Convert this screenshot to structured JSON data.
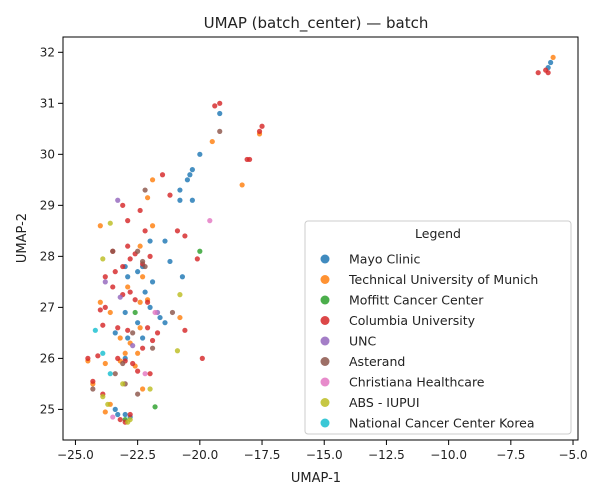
{
  "chart_data": {
    "type": "scatter",
    "title": "UMAP (batch_center) — batch",
    "xlabel": "UMAP-1",
    "ylabel": "UMAP-2",
    "xlim": [
      -25.5,
      -4.8
    ],
    "ylim": [
      24.4,
      32.3
    ],
    "xticks": [
      -25.0,
      -22.5,
      -20.0,
      -17.5,
      -15.0,
      -12.5,
      -10.0,
      -7.5,
      -5.0
    ],
    "xtick_labels": [
      "−25.0",
      "−22.5",
      "−20.0",
      "−17.5",
      "−15.0",
      "−12.5",
      "−10.0",
      "−7.5",
      "−5.0"
    ],
    "yticks": [
      25,
      26,
      27,
      28,
      29,
      30,
      31,
      32
    ],
    "ytick_labels": [
      "25",
      "26",
      "27",
      "28",
      "29",
      "30",
      "31",
      "32"
    ],
    "grid": false,
    "legend": {
      "title": "Legend",
      "placement": "lower-right"
    },
    "series": [
      {
        "name": "Mayo Clinic",
        "color": "#1f77b4",
        "points": [
          [
            -5.9,
            31.8
          ],
          [
            -6.0,
            31.7
          ],
          [
            -19.2,
            30.8
          ],
          [
            -20.0,
            30.0
          ],
          [
            -20.3,
            29.7
          ],
          [
            -20.4,
            29.6
          ],
          [
            -20.5,
            29.5
          ],
          [
            -20.8,
            29.3
          ],
          [
            -20.3,
            29.1
          ],
          [
            -20.8,
            29.1
          ],
          [
            -21.4,
            28.3
          ],
          [
            -22.0,
            28.3
          ],
          [
            -21.2,
            27.9
          ],
          [
            -22.3,
            27.8
          ],
          [
            -22.9,
            27.6
          ],
          [
            -23.0,
            27.8
          ],
          [
            -22.5,
            27.7
          ],
          [
            -21.9,
            27.5
          ],
          [
            -20.7,
            27.6
          ],
          [
            -22.2,
            27.3
          ],
          [
            -22.0,
            27.0
          ],
          [
            -21.6,
            26.8
          ],
          [
            -21.4,
            26.7
          ],
          [
            -23.0,
            26.9
          ],
          [
            -22.5,
            26.7
          ],
          [
            -23.4,
            26.5
          ],
          [
            -22.9,
            26.4
          ],
          [
            -22.3,
            26.4
          ],
          [
            -23.0,
            26.0
          ],
          [
            -23.4,
            25.0
          ],
          [
            -23.0,
            24.9
          ],
          [
            -22.8,
            24.85
          ],
          [
            -23.3,
            24.9
          ]
        ]
      },
      {
        "name": "Technical University of Munich",
        "color": "#ff7f0e",
        "points": [
          [
            -5.8,
            31.9
          ],
          [
            -19.5,
            30.25
          ],
          [
            -17.6,
            30.4
          ],
          [
            -18.3,
            29.4
          ],
          [
            -21.9,
            29.5
          ],
          [
            -22.1,
            29.15
          ],
          [
            -24.0,
            28.6
          ],
          [
            -21.9,
            28.6
          ],
          [
            -22.4,
            28.2
          ],
          [
            -22.3,
            27.6
          ],
          [
            -24.0,
            27.1
          ],
          [
            -22.1,
            27.15
          ],
          [
            -22.9,
            27.4
          ],
          [
            -22.4,
            27.1
          ],
          [
            -23.6,
            26.9
          ],
          [
            -22.4,
            26.6
          ],
          [
            -23.2,
            26.4
          ],
          [
            -22.8,
            26.3
          ],
          [
            -23.0,
            26.1
          ],
          [
            -22.5,
            26.1
          ],
          [
            -22.6,
            25.85
          ],
          [
            -23.2,
            25.95
          ],
          [
            -23.8,
            25.9
          ],
          [
            -24.5,
            25.95
          ],
          [
            -24.3,
            25.5
          ],
          [
            -23.8,
            24.95
          ],
          [
            -23.6,
            25.1
          ],
          [
            -22.3,
            25.4
          ],
          [
            -20.8,
            26.8
          ]
        ]
      },
      {
        "name": "Moffitt Cancer Center",
        "color": "#2ca02c",
        "points": [
          [
            -20.0,
            28.1
          ],
          [
            -21.8,
            25.05
          ],
          [
            -22.6,
            26.9
          ],
          [
            -23.0,
            24.8
          ]
        ]
      },
      {
        "name": "Columbia University",
        "color": "#d62728",
        "points": [
          [
            -6.4,
            31.6
          ],
          [
            -6.0,
            31.6
          ],
          [
            -6.1,
            31.65
          ],
          [
            -19.2,
            31.0
          ],
          [
            -19.4,
            30.95
          ],
          [
            -17.5,
            30.55
          ],
          [
            -17.6,
            30.45
          ],
          [
            -18.0,
            29.9
          ],
          [
            -18.1,
            29.9
          ],
          [
            -21.5,
            29.6
          ],
          [
            -21.2,
            29.2
          ],
          [
            -23.1,
            29.0
          ],
          [
            -22.9,
            28.7
          ],
          [
            -22.4,
            28.9
          ],
          [
            -22.2,
            28.5
          ],
          [
            -20.9,
            28.5
          ],
          [
            -20.6,
            28.4
          ],
          [
            -20.1,
            27.95
          ],
          [
            -22.9,
            28.2
          ],
          [
            -23.5,
            28.1
          ],
          [
            -22.6,
            28.05
          ],
          [
            -22.8,
            27.95
          ],
          [
            -22.3,
            27.85
          ],
          [
            -22.0,
            28.0
          ],
          [
            -23.1,
            27.8
          ],
          [
            -23.4,
            27.7
          ],
          [
            -23.8,
            27.6
          ],
          [
            -23.5,
            27.4
          ],
          [
            -23.1,
            27.25
          ],
          [
            -22.8,
            27.3
          ],
          [
            -22.6,
            27.15
          ],
          [
            -22.1,
            27.1
          ],
          [
            -23.8,
            27.0
          ],
          [
            -24.0,
            26.95
          ],
          [
            -23.9,
            26.65
          ],
          [
            -23.3,
            26.6
          ],
          [
            -22.9,
            26.55
          ],
          [
            -22.1,
            26.6
          ],
          [
            -21.7,
            26.5
          ],
          [
            -21.9,
            26.35
          ],
          [
            -22.3,
            26.2
          ],
          [
            -24.1,
            26.05
          ],
          [
            -23.3,
            26.0
          ],
          [
            -24.5,
            26.0
          ],
          [
            -24.3,
            25.55
          ],
          [
            -23.9,
            25.3
          ],
          [
            -20.6,
            26.55
          ],
          [
            -19.9,
            26.0
          ],
          [
            -23.0,
            25.95
          ],
          [
            -22.7,
            25.9
          ],
          [
            -22.5,
            25.75
          ],
          [
            -22.0,
            25.7
          ],
          [
            -23.2,
            24.8
          ],
          [
            -23.0,
            24.75
          ],
          [
            -22.8,
            24.9
          ]
        ]
      },
      {
        "name": "UNC",
        "color": "#9467bd",
        "points": [
          [
            -23.3,
            29.1
          ],
          [
            -23.8,
            27.5
          ],
          [
            -21.7,
            26.9
          ],
          [
            -23.2,
            27.2
          ],
          [
            -22.7,
            26.25
          ]
        ]
      },
      {
        "name": "Asterand",
        "color": "#8c564b",
        "points": [
          [
            -19.2,
            30.45
          ],
          [
            -22.2,
            29.3
          ],
          [
            -22.5,
            28.1
          ],
          [
            -23.5,
            28.1
          ],
          [
            -22.3,
            27.9
          ],
          [
            -22.2,
            27.8
          ],
          [
            -21.1,
            26.9
          ],
          [
            -22.7,
            26.5
          ],
          [
            -23.0,
            25.5
          ],
          [
            -23.4,
            25.7
          ],
          [
            -24.3,
            25.4
          ],
          [
            -22.5,
            25.3
          ],
          [
            -21.9,
            26.2
          ],
          [
            -23.1,
            25.9
          ]
        ]
      },
      {
        "name": "Christiana Healthcare",
        "color": "#e377c2",
        "points": [
          [
            -19.6,
            28.7
          ],
          [
            -21.8,
            26.9
          ],
          [
            -22.2,
            25.7
          ],
          [
            -23.5,
            24.85
          ]
        ]
      },
      {
        "name": "ABS - IUPUI",
        "color": "#bcbd22",
        "points": [
          [
            -23.6,
            28.65
          ],
          [
            -23.9,
            27.95
          ],
          [
            -20.8,
            27.25
          ],
          [
            -20.9,
            26.15
          ],
          [
            -23.1,
            25.5
          ],
          [
            -23.9,
            25.25
          ],
          [
            -23.7,
            25.1
          ],
          [
            -22.0,
            25.4
          ],
          [
            -22.8,
            24.8
          ],
          [
            -22.9,
            24.75
          ]
        ]
      },
      {
        "name": "National Cancer Center Korea",
        "color": "#17becf",
        "points": [
          [
            -24.2,
            26.55
          ],
          [
            -23.9,
            26.1
          ],
          [
            -23.6,
            25.7
          ]
        ]
      }
    ]
  }
}
